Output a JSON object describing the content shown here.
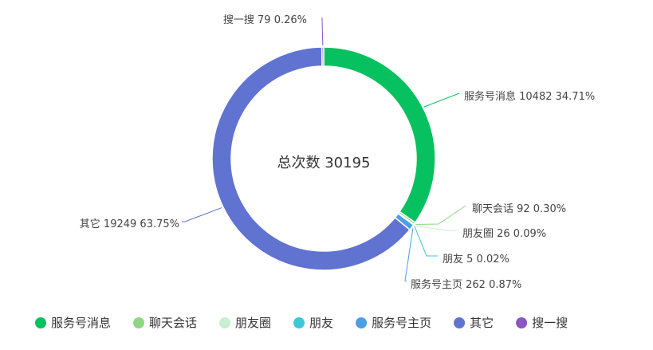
{
  "chart_data": {
    "type": "pie",
    "variant": "donut",
    "center_label": "总次数 30195",
    "legend_position": "bottom",
    "slices": [
      {
        "name": "服务号消息",
        "value": 10482,
        "percent": "34.71%",
        "color": "#07c160",
        "label": "服务号消息 10482 34.71%"
      },
      {
        "name": "聊天会话",
        "value": 92,
        "percent": "0.30%",
        "color": "#8ed682",
        "label": "聊天会话 92 0.30%"
      },
      {
        "name": "朋友圈",
        "value": 26,
        "percent": "0.09%",
        "color": "#c7efd0",
        "label": "朋友圈 26 0.09%"
      },
      {
        "name": "朋友",
        "value": 5,
        "percent": "0.02%",
        "color": "#3ec6d9",
        "label": "朋友 5 0.02%"
      },
      {
        "name": "服务号主页",
        "value": 262,
        "percent": "0.87%",
        "color": "#4d9de8",
        "label": "服务号主页 262 0.87%"
      },
      {
        "name": "其它",
        "value": 19249,
        "percent": "63.75%",
        "color": "#6173d1",
        "label": "其它 19249 63.75%"
      },
      {
        "name": "搜一搜",
        "value": 79,
        "percent": "0.26%",
        "color": "#8a55c4",
        "label": "搜一搜 79 0.26%"
      }
    ]
  }
}
